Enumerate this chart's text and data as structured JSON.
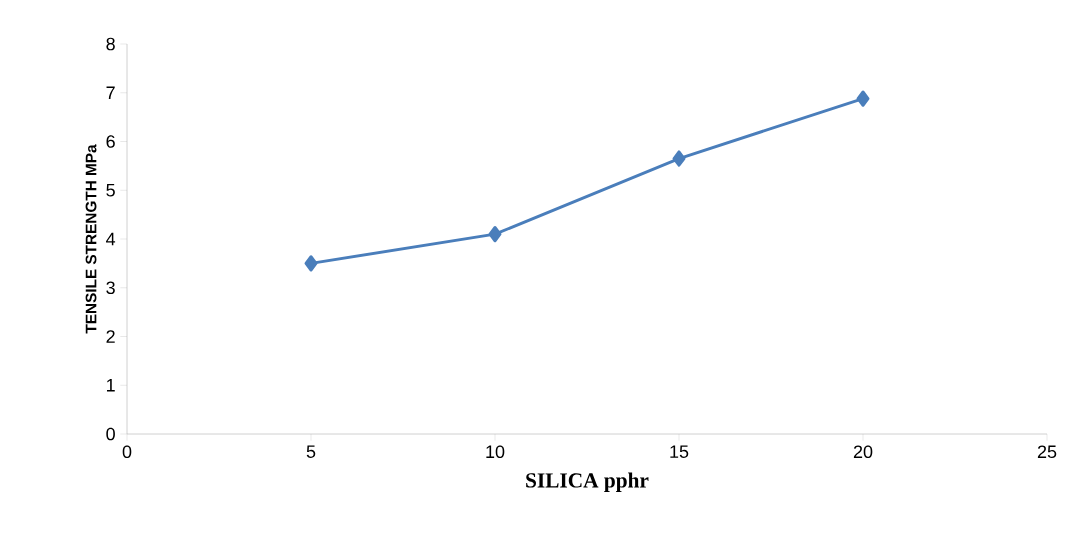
{
  "chart_data": {
    "type": "line",
    "xlabel": "SILICA pphr",
    "ylabel": "TENSILE STRENGTH  MPa",
    "x": [
      5,
      10,
      15,
      20
    ],
    "series": [
      {
        "color": "#4a7ebb",
        "values": [
          3.5,
          4.1,
          5.65,
          6.88
        ]
      }
    ],
    "xlim": [
      0,
      25
    ],
    "xticks": [
      0,
      5,
      10,
      15,
      20,
      25
    ],
    "ylim": [
      0,
      8
    ],
    "yticks": [
      0,
      1,
      2,
      3,
      4,
      5,
      6,
      7,
      8
    ],
    "grid": false,
    "marker": "diamond",
    "line_style": "solid"
  }
}
